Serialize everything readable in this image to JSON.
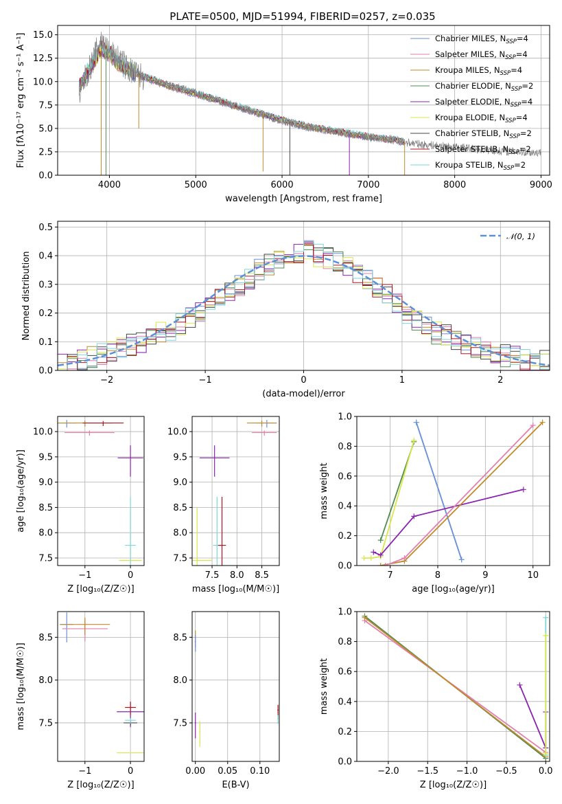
{
  "series_colors": [
    {
      "name": "Chabrier MILES",
      "color": "#6f8fd6"
    },
    {
      "name": "Salpeter MILES",
      "color": "#e27fae"
    },
    {
      "name": "Kroupa MILES",
      "color": "#c08a2a"
    },
    {
      "name": "Chabrier ELODIE",
      "color": "#4f8d4f"
    },
    {
      "name": "Salpeter ELODIE",
      "color": "#8a22b0"
    },
    {
      "name": "Kroupa ELODIE",
      "color": "#d8e84a"
    },
    {
      "name": "Chabrier STELIB",
      "color": "#444444"
    },
    {
      "name": "Salpeter STELIB",
      "color": "#b0141e"
    },
    {
      "name": "Kroupa STELIB",
      "color": "#7fd6d9"
    }
  ],
  "chart_data": [
    {
      "id": "spectrum",
      "type": "line",
      "title": "PLATE=0500, MJD=51994, FIBERID=0257, z=0.035",
      "xlabel": "wavelength [Angstrom, rest frame]",
      "ylabel": "Flux [fλ10⁻¹⁷ erg cm⁻² s⁻¹ A⁻¹]",
      "xlim": [
        3400,
        9100
      ],
      "ylim": [
        0,
        16
      ],
      "xticks": [
        "4000",
        "5000",
        "6000",
        "7000",
        "8000",
        "9000"
      ],
      "xtick_values": [
        4000,
        5000,
        6000,
        7000,
        8000,
        9000
      ],
      "yticks": [
        "0.0",
        "2.5",
        "5.0",
        "7.5",
        "10.0",
        "12.5",
        "15.0"
      ],
      "ytick_values": [
        0,
        2.5,
        5,
        7.5,
        10,
        12.5,
        15
      ],
      "legend_position": "top-right",
      "legend": [
        {
          "text": "Chabrier MILES, N",
          "sub": "SSP",
          "tail": "=4"
        },
        {
          "text": "Salpeter MILES, N",
          "sub": "SSP",
          "tail": "=4"
        },
        {
          "text": "Kroupa MILES, N",
          "sub": "SSP",
          "tail": "=4"
        },
        {
          "text": "Chabrier ELODIE, N",
          "sub": "SSP",
          "tail": "=2"
        },
        {
          "text": "Salpeter ELODIE, N",
          "sub": "SSP",
          "tail": "=4"
        },
        {
          "text": "Kroupa ELODIE, N",
          "sub": "SSP",
          "tail": "=4"
        },
        {
          "text": "Chabrier STELIB, N",
          "sub": "SSP",
          "tail": "=2"
        },
        {
          "text": "Salpeter STELIB, N",
          "sub": "SSP",
          "tail": "=2"
        },
        {
          "text": "Kroupa STELIB, N",
          "sub": "SSP",
          "tail": "=2"
        }
      ],
      "data_curve": {
        "x": [
          3650,
          3700,
          3800,
          3900,
          4000,
          4100,
          4200,
          4300,
          4400,
          4500,
          4700,
          5000,
          5300,
          5600,
          6000,
          6300,
          6600,
          7000,
          7300,
          7600,
          8000,
          8500,
          9000
        ],
        "y": [
          8.0,
          10.0,
          12.0,
          14.5,
          13.0,
          12.5,
          11.5,
          10.8,
          10.5,
          10.0,
          9.6,
          8.8,
          7.8,
          7.0,
          5.8,
          5.1,
          4.7,
          4.1,
          3.7,
          3.3,
          3.0,
          2.6,
          2.4
        ]
      },
      "model_curve": {
        "x": [
          3650,
          3700,
          3800,
          3900,
          4000,
          4100,
          4200,
          4300,
          4400,
          4500,
          4700,
          5000,
          5300,
          5600,
          6000,
          6300,
          6600,
          7000,
          7300,
          7400
        ],
        "y": [
          9.5,
          10.3,
          11.8,
          13.5,
          13.0,
          12.0,
          11.5,
          10.9,
          10.5,
          10.2,
          9.5,
          8.7,
          7.9,
          7.0,
          5.9,
          5.2,
          4.7,
          4.1,
          3.8,
          3.6
        ]
      }
    },
    {
      "id": "residuals",
      "type": "line",
      "xlabel": "(data-model)/error",
      "ylabel": "Normed distribution",
      "xlim": [
        -2.5,
        2.5
      ],
      "ylim": [
        0,
        0.52
      ],
      "xticks": [
        "−2",
        "−1",
        "0",
        "1",
        "2"
      ],
      "xtick_values": [
        -2,
        -1,
        0,
        1,
        2
      ],
      "yticks": [
        "0.0",
        "0.1",
        "0.2",
        "0.3",
        "0.4",
        "0.5"
      ],
      "ytick_values": [
        0,
        0.1,
        0.2,
        0.3,
        0.4,
        0.5
      ],
      "legend_position": "top-right",
      "legend": [
        {
          "text": "𝒩(0, 1)",
          "color": "#5b8fd6"
        }
      ],
      "gaussian": {
        "mu": 0,
        "sigma": 1
      },
      "hist_bins": {
        "start": -2.5,
        "width": 0.1,
        "count": 50
      },
      "hist_base": [
        0.02,
        0.03,
        0.04,
        0.05,
        0.06,
        0.07,
        0.08,
        0.09,
        0.1,
        0.12,
        0.13,
        0.14,
        0.16,
        0.18,
        0.2,
        0.22,
        0.25,
        0.27,
        0.3,
        0.32,
        0.35,
        0.37,
        0.38,
        0.39,
        0.4,
        0.42,
        0.4,
        0.39,
        0.38,
        0.36,
        0.34,
        0.31,
        0.29,
        0.26,
        0.23,
        0.2,
        0.18,
        0.16,
        0.13,
        0.12,
        0.1,
        0.09,
        0.08,
        0.07,
        0.06,
        0.05,
        0.05,
        0.04,
        0.03,
        0.03
      ]
    },
    {
      "id": "age-vs-Z",
      "type": "scatter",
      "xlabel": "Z [log₁₀(Z/Z☉)]",
      "ylabel": "age  [log₁₀(age/yr)]",
      "xlim": [
        -1.6,
        0.3
      ],
      "ylim": [
        7.35,
        10.3
      ],
      "xticks": [
        "−1",
        "0"
      ],
      "xtick_values": [
        -1,
        0
      ],
      "yticks": [
        "7.5",
        "8.0",
        "8.5",
        "9.0",
        "9.5",
        "10.0"
      ],
      "ytick_values": [
        7.5,
        8.0,
        8.5,
        9.0,
        9.5,
        10.0
      ],
      "points": [
        {
          "s": 0,
          "x": -1.4,
          "y": 10.17,
          "xe": 0.2,
          "ye": 0.15
        },
        {
          "s": 1,
          "x": -0.9,
          "y": 9.98,
          "xe": 0.55,
          "ye": 0.1
        },
        {
          "s": 2,
          "x": -1.0,
          "y": 10.17,
          "xe": 0.6,
          "ye": 0.12
        },
        {
          "s": 4,
          "x": 0.0,
          "y": 9.48,
          "xe": 0.28,
          "ye": 0.62
        },
        {
          "s": 5,
          "x": 0.0,
          "y": 7.45,
          "xe": 0.25,
          "ye": 2.6
        },
        {
          "s": 8,
          "x": 0.0,
          "y": 7.75,
          "xe": 0.12,
          "ye": 2.4
        },
        {
          "s": 7,
          "x": -0.6,
          "y": 10.17,
          "xe": 0.45,
          "ye": 0.1
        }
      ]
    },
    {
      "id": "age-vs-mass",
      "type": "scatter",
      "xlabel": "mass [log₁₀(M/M☉)]",
      "ylabel": "",
      "xlim": [
        7.1,
        8.85
      ],
      "ylim": [
        7.35,
        10.3
      ],
      "xticks": [
        "7.5",
        "8.0",
        "8.5"
      ],
      "xtick_values": [
        7.5,
        8.0,
        8.5
      ],
      "yticks": [
        "7.5",
        "8.0",
        "8.5",
        "9.0",
        "9.5",
        "10.0"
      ],
      "ytick_values": [
        7.5,
        8.0,
        8.5,
        9.0,
        9.5,
        10.0
      ],
      "points": [
        {
          "s": 5,
          "x": 7.2,
          "y": 7.45,
          "xe": 0.3,
          "ye": 2.6
        },
        {
          "s": 4,
          "x": 7.55,
          "y": 9.48,
          "xe": 0.3,
          "ye": 0.62
        },
        {
          "s": 8,
          "x": 7.6,
          "y": 7.75,
          "xe": 0.08,
          "ye": 2.4
        },
        {
          "s": 7,
          "x": 7.7,
          "y": 7.75,
          "xe": 0.08,
          "ye": 2.4
        },
        {
          "s": 0,
          "x": 8.6,
          "y": 10.17,
          "xe": 0.2,
          "ye": 0.15
        },
        {
          "s": 1,
          "x": 8.55,
          "y": 9.98,
          "xe": 0.25,
          "ye": 0.1
        },
        {
          "s": 2,
          "x": 8.5,
          "y": 10.17,
          "xe": 0.3,
          "ye": 0.12
        }
      ]
    },
    {
      "id": "massweight-vs-age",
      "type": "line",
      "xlabel": "age  [log₁₀(age/yr)]",
      "ylabel": "mass weight",
      "xlim": [
        6.3,
        10.35
      ],
      "ylim": [
        0,
        1
      ],
      "xticks": [
        "7",
        "8",
        "9",
        "10"
      ],
      "xtick_values": [
        7,
        8,
        9,
        10
      ],
      "yticks": [
        "0.0",
        "0.2",
        "0.4",
        "0.6",
        "0.8",
        "1.0"
      ],
      "ytick_values": [
        0,
        0.2,
        0.4,
        0.6,
        0.8,
        1.0
      ],
      "lines": [
        {
          "s": 3,
          "x": [
            6.8,
            7.5
          ],
          "y": [
            0.17,
            0.83
          ]
        },
        {
          "s": 5,
          "x": 6.5,
          "xs": [
            6.45,
            6.6,
            6.8,
            7.5
          ],
          "ys": [
            0.05,
            0.05,
            0.06,
            0.84
          ]
        },
        {
          "s": 8,
          "x": [
            7.55,
            8.5
          ],
          "y": [
            0.96,
            0.04
          ]
        },
        {
          "s": 0,
          "x": [
            7.55,
            8.5
          ],
          "y": [
            0.96,
            0.04
          ]
        },
        {
          "s": 4,
          "x": [
            6.65,
            6.8,
            7.5,
            9.8
          ],
          "y": [
            0.09,
            0.07,
            0.33,
            0.51
          ]
        },
        {
          "s": 2,
          "x": [
            6.8,
            7.3,
            10.2
          ],
          "y": [
            0.0,
            0.03,
            0.96
          ]
        },
        {
          "s": 1,
          "x": [
            6.9,
            7.3,
            10.0
          ],
          "y": [
            0.0,
            0.05,
            0.94
          ]
        }
      ]
    },
    {
      "id": "mass-vs-Z",
      "type": "scatter",
      "xlabel": "Z [log₁₀(Z/Z☉)]",
      "ylabel": "mass [log₁₀(M/M☉)]",
      "xlim": [
        -1.6,
        0.3
      ],
      "ylim": [
        7.05,
        8.8
      ],
      "xticks": [
        "−1",
        "0"
      ],
      "xtick_values": [
        -1,
        0
      ],
      "yticks": [
        "7.5",
        "8.0",
        "8.5"
      ],
      "ytick_values": [
        7.5,
        8.0,
        8.5
      ],
      "points": [
        {
          "s": 0,
          "x": -1.4,
          "y": 8.65,
          "xe": 0.15,
          "ye": 0.35
        },
        {
          "s": 1,
          "x": -1.0,
          "y": 8.6,
          "xe": 0.5,
          "ye": 0.25
        },
        {
          "s": 2,
          "x": -1.0,
          "y": 8.65,
          "xe": 0.55,
          "ye": 0.2
        },
        {
          "s": 4,
          "x": 0.0,
          "y": 7.63,
          "xe": 0.3,
          "ye": 0.3
        },
        {
          "s": 5,
          "x": 0.0,
          "y": 7.15,
          "xe": 0.3,
          "ye": 0.01
        },
        {
          "s": 6,
          "x": 0.0,
          "y": 7.5,
          "xe": 0.15,
          "ye": 0.05
        },
        {
          "s": 7,
          "x": 0.0,
          "y": 7.68,
          "xe": 0.12,
          "ye": 0.15
        },
        {
          "s": 8,
          "x": 0.0,
          "y": 7.53,
          "xe": 0.12,
          "ye": 0.06
        }
      ]
    },
    {
      "id": "mass-vs-ebv",
      "type": "scatter",
      "xlabel": "E(B-V)",
      "ylabel": "",
      "xlim": [
        -0.005,
        0.13
      ],
      "ylim": [
        7.05,
        8.8
      ],
      "xticks": [
        "0.00",
        "0.05",
        "0.10"
      ],
      "xtick_values": [
        0,
        0.05,
        0.1
      ],
      "yticks": [
        "7.5",
        "8.0",
        "8.5"
      ],
      "ytick_values": [
        7.5,
        8.0,
        8.5
      ],
      "points": [
        {
          "s": 2,
          "x": 0.0,
          "y": 8.5,
          "xe": 0.001,
          "ye": 0.2
        },
        {
          "s": 0,
          "x": 0.0,
          "y": 8.45,
          "xe": 0.001,
          "ye": 0.2
        },
        {
          "s": 4,
          "x": 0.0,
          "y": 7.5,
          "xe": 0.001,
          "ye": 0.3
        },
        {
          "s": 5,
          "x": 0.007,
          "y": 7.4,
          "xe": 0.001,
          "ye": 0.3
        },
        {
          "s": 7,
          "x": 0.128,
          "y": 7.65,
          "xe": 0.001,
          "ye": 0.15
        },
        {
          "s": 8,
          "x": 0.128,
          "y": 7.55,
          "xe": 0.001,
          "ye": 0.1
        }
      ]
    },
    {
      "id": "massweight-vs-Z",
      "type": "line",
      "xlabel": "Z [log₁₀(Z/Z☉)]",
      "ylabel": "mass weight",
      "xlim": [
        -2.4,
        0.05
      ],
      "ylim": [
        0,
        1
      ],
      "xticks": [
        "−2.0",
        "−1.5",
        "−1.0",
        "−0.5",
        "0.0"
      ],
      "xtick_values": [
        -2,
        -1.5,
        -1,
        -0.5,
        0
      ],
      "yticks": [
        "0.0",
        "0.2",
        "0.4",
        "0.6",
        "0.8",
        "1.0"
      ],
      "ytick_values": [
        0,
        0.2,
        0.4,
        0.6,
        0.8,
        1.0
      ],
      "lines": [
        {
          "s": 3,
          "x": [
            -2.3,
            0.0
          ],
          "y": [
            0.97,
            0.02
          ]
        },
        {
          "s": 1,
          "x": [
            -2.3,
            0.0
          ],
          "y": [
            0.94,
            0.06
          ]
        },
        {
          "s": 2,
          "x": [
            -2.3,
            0.0
          ],
          "y": [
            0.96,
            0.03
          ]
        },
        {
          "s": 4,
          "x": [
            -0.33,
            0.0,
            0.0
          ],
          "y": [
            0.51,
            0.09,
            0.33
          ]
        },
        {
          "s": 8,
          "x": [
            0.0,
            0.0
          ],
          "y": [
            0.96,
            0.04
          ]
        },
        {
          "s": 5,
          "x": [
            0.0,
            0.0
          ],
          "y": [
            0.84,
            0.05
          ]
        }
      ]
    }
  ]
}
